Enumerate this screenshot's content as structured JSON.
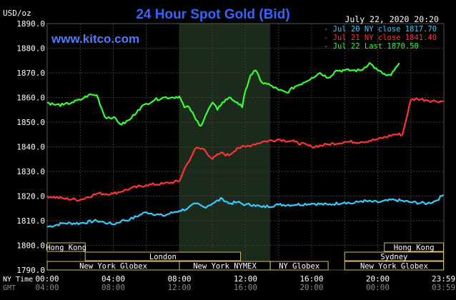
{
  "header": {
    "title": "24 Hour Spot Gold (Bid)",
    "site": "www.kitco.com",
    "date": "July 22, 2020 20:20",
    "unit": "USD/oz"
  },
  "legend": [
    {
      "label": "Jul 20 NY close 1817.70",
      "color": "#33ccff"
    },
    {
      "label": "Jul 21 NY close 1841.40",
      "color": "#ff3333"
    },
    {
      "label": "Jul 22 Last 1870.50",
      "color": "#33ff33"
    }
  ],
  "chart_data": {
    "type": "line",
    "title": "24 Hour Spot Gold (Bid)",
    "ylabel": "USD/oz",
    "ylim": [
      1790,
      1890
    ],
    "yticks": [
      "1890.0",
      "1880.0",
      "1870.0",
      "1860.0",
      "1850.0",
      "1840.0",
      "1830.0",
      "1820.0",
      "1810.0",
      "1800.0",
      "1790.0"
    ],
    "xlim": [
      0,
      24
    ],
    "xticks_ny": [
      "00:00",
      "04:00",
      "08:00",
      "12:00",
      "16:00",
      "20:00",
      "23:59"
    ],
    "xticks_gmt": [
      "04:00",
      "08:00",
      "12:00",
      "16:00",
      "20:00",
      "00:00",
      "03:59"
    ],
    "x_row_labels": [
      "NY Time",
      "GMT"
    ],
    "grid": true,
    "legend_position": "top-right",
    "highlight_range": [
      8,
      13.5
    ],
    "series": [
      {
        "name": "Jul 20 NY close 1817.70",
        "color": "#33ccff",
        "x": [
          0,
          1,
          2,
          3,
          3.7,
          4,
          4.5,
          5,
          6,
          7,
          7.7,
          8,
          8.5,
          9,
          9.5,
          10,
          10.6,
          11,
          11.5,
          12,
          12.5,
          13,
          14,
          15,
          16,
          17,
          18,
          18.5,
          19,
          20,
          21,
          22,
          23,
          23.5,
          23.98
        ],
        "y": [
          1807.5,
          1809,
          1809,
          1810,
          1809,
          1808.5,
          1810,
          1810.5,
          1813.5,
          1812,
          1813.5,
          1814,
          1815,
          1817,
          1815.5,
          1817,
          1819,
          1817,
          1817.5,
          1816.5,
          1816.5,
          1815.5,
          1816.5,
          1816.5,
          1817,
          1816.5,
          1817.5,
          1817,
          1818,
          1817.5,
          1818.5,
          1817.5,
          1817,
          1818,
          1820.5
        ]
      },
      {
        "name": "Jul 21 NY close 1841.40",
        "color": "#ff3333",
        "x": [
          0,
          1,
          2,
          3,
          4,
          5,
          6,
          7,
          8,
          8.3,
          8.8,
          9,
          9.5,
          10,
          10.5,
          11,
          11.5,
          12,
          12.5,
          13,
          14,
          15,
          16,
          17,
          18,
          19,
          20,
          21,
          21.5,
          22,
          22.4,
          22.9,
          23.5,
          23.98
        ],
        "y": [
          1820,
          1819,
          1818.5,
          1821,
          1821,
          1823,
          1824.5,
          1825,
          1826,
          1831,
          1837,
          1839.5,
          1839,
          1835,
          1837.5,
          1836.5,
          1839.5,
          1840,
          1841,
          1842,
          1843,
          1842,
          1840,
          1841,
          1842,
          1842,
          1843,
          1845,
          1845,
          1859,
          1859.5,
          1859,
          1858.5,
          1858.5
        ]
      },
      {
        "name": "Jul 22 Last 1870.50",
        "color": "#33ff33",
        "x": [
          0,
          0.5,
          1,
          1.5,
          2,
          2.5,
          3,
          3.5,
          4,
          4.5,
          5,
          5.5,
          6,
          6.5,
          7,
          7.5,
          8,
          8.3,
          8.6,
          9,
          9.3,
          9.6,
          10,
          10.3,
          10.6,
          11,
          11.5,
          11.8,
          12,
          12.3,
          12.6,
          13,
          13.5,
          14,
          14.5,
          15,
          15.5,
          16,
          16.5,
          17,
          17.5,
          18,
          18.5,
          19,
          19.5,
          20,
          20.5,
          20.8,
          21,
          21.3
        ],
        "y": [
          1858,
          1857,
          1857,
          1858,
          1859,
          1861,
          1861,
          1852,
          1852,
          1849,
          1851,
          1855,
          1857.5,
          1859,
          1860,
          1860,
          1860.5,
          1856,
          1856,
          1851,
          1848.5,
          1853,
          1858,
          1855,
          1858,
          1860,
          1858,
          1856,
          1863,
          1869,
          1871,
          1866,
          1865,
          1863,
          1862,
          1864.5,
          1866,
          1868,
          1870,
          1868,
          1871,
          1871,
          1871,
          1871,
          1874,
          1871,
          1869,
          1869,
          1871,
          1874
        ]
      }
    ]
  },
  "sessions": [
    {
      "label": "Hong Kong",
      "start": 0,
      "end": 2.3,
      "row": 0
    },
    {
      "label": "Hong Kong",
      "start": 20.4,
      "end": 23.98,
      "row": 0
    },
    {
      "label": "London",
      "start": 2.3,
      "end": 11.7,
      "row": 1
    },
    {
      "label": "Sydney",
      "start": 18.0,
      "end": 23.98,
      "row": 1
    },
    {
      "label": "New York Globex",
      "start": 0,
      "end": 8.0,
      "row": 2
    },
    {
      "label": "New York NYMEX",
      "start": 8.0,
      "end": 13.5,
      "row": 2
    },
    {
      "label": "NY Globex",
      "start": 13.5,
      "end": 17.0,
      "row": 2
    },
    {
      "label": "New York Globex",
      "start": 18.0,
      "end": 23.98,
      "row": 2
    }
  ]
}
